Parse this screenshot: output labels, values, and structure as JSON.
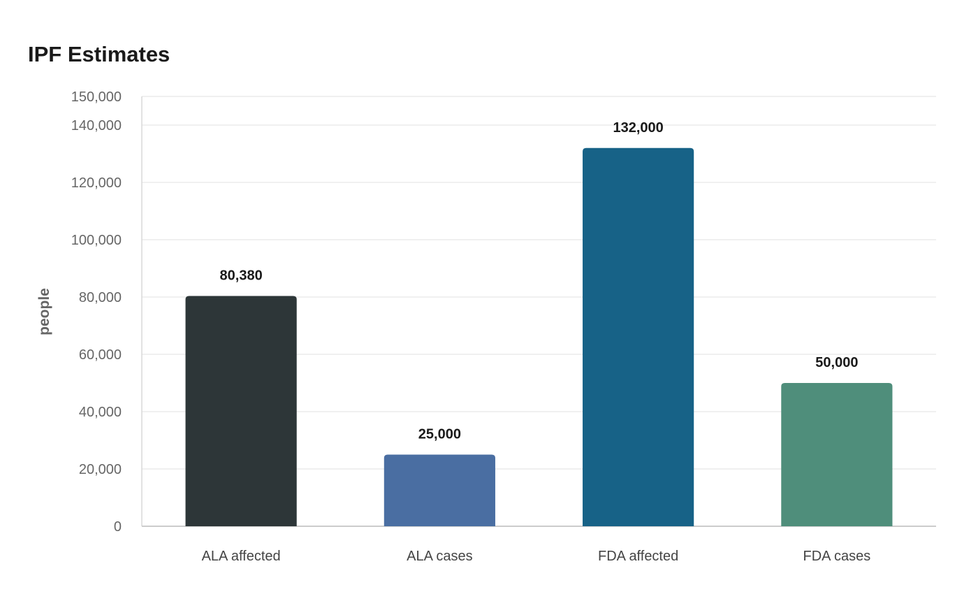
{
  "chart_data": {
    "type": "bar",
    "title": "IPF Estimates",
    "xlabel": "",
    "ylabel": "people",
    "ylim": [
      0,
      150000
    ],
    "yticks": [
      0,
      20000,
      40000,
      60000,
      80000,
      100000,
      120000,
      140000,
      150000
    ],
    "ytick_labels": [
      "0",
      "20,000",
      "40,000",
      "60,000",
      "80,000",
      "100,000",
      "120,000",
      "140,000",
      "150,000"
    ],
    "grid": true,
    "categories": [
      "ALA affected",
      "ALA cases",
      "FDA affected",
      "FDA cases"
    ],
    "values": [
      80380,
      25000,
      132000,
      50000
    ],
    "value_labels": [
      "80,380",
      "25,000",
      "132,000",
      "50,000"
    ],
    "colors": [
      "#2d3638",
      "#4a6ea2",
      "#176287",
      "#4f8e7b"
    ]
  }
}
